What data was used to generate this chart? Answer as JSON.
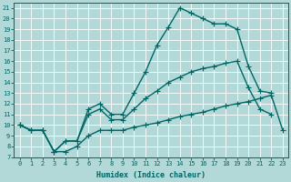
{
  "xlabel": "Humidex (Indice chaleur)",
  "bg_color": "#b2d8d8",
  "line_color": "#006666",
  "grid_color": "#ffffff",
  "xlim": [
    -0.5,
    23.5
  ],
  "ylim": [
    7,
    21.5
  ],
  "xticks": [
    0,
    1,
    2,
    3,
    4,
    5,
    6,
    7,
    8,
    9,
    10,
    11,
    12,
    13,
    14,
    15,
    16,
    17,
    18,
    19,
    20,
    21,
    22,
    23
  ],
  "yticks": [
    7,
    8,
    9,
    10,
    11,
    12,
    13,
    14,
    15,
    16,
    17,
    18,
    19,
    20,
    21
  ],
  "line1_x": [
    0,
    1,
    2,
    3,
    4,
    5,
    6,
    7,
    8,
    9,
    10,
    11,
    12,
    13,
    14,
    15,
    16,
    17,
    18,
    19,
    20,
    21,
    22,
    23
  ],
  "line1_y": [
    10.0,
    9.5,
    9.5,
    7.5,
    7.5,
    8.0,
    9.0,
    9.5,
    9.5,
    9.5,
    9.8,
    10.0,
    10.2,
    10.5,
    10.8,
    11.0,
    11.2,
    11.5,
    11.8,
    12.0,
    12.2,
    12.5,
    12.8,
    9.5
  ],
  "line2_x": [
    0,
    1,
    2,
    3,
    4,
    5,
    6,
    7,
    8,
    9,
    10,
    11,
    12,
    13,
    14,
    15,
    16,
    17,
    18,
    19,
    20,
    21,
    22
  ],
  "line2_y": [
    10.0,
    9.5,
    9.5,
    7.5,
    8.5,
    8.5,
    11.5,
    12.0,
    11.0,
    11.0,
    13.0,
    15.0,
    17.5,
    19.2,
    21.0,
    20.5,
    20.0,
    19.5,
    19.5,
    19.0,
    15.5,
    13.2,
    13.0
  ],
  "line3_x": [
    0,
    1,
    2,
    3,
    4,
    5,
    6,
    7,
    8,
    9,
    10,
    11,
    12,
    13,
    14,
    15,
    16,
    17,
    18,
    19,
    20,
    21,
    22,
    23
  ],
  "line3_y": [
    10.0,
    9.5,
    9.5,
    7.5,
    8.5,
    8.5,
    11.0,
    11.5,
    10.5,
    10.5,
    11.5,
    12.5,
    13.2,
    14.0,
    14.5,
    15.0,
    15.3,
    15.5,
    15.8,
    16.0,
    13.5,
    11.5,
    11.0,
    null
  ],
  "marker_size": 2.5,
  "linewidth": 1.0
}
